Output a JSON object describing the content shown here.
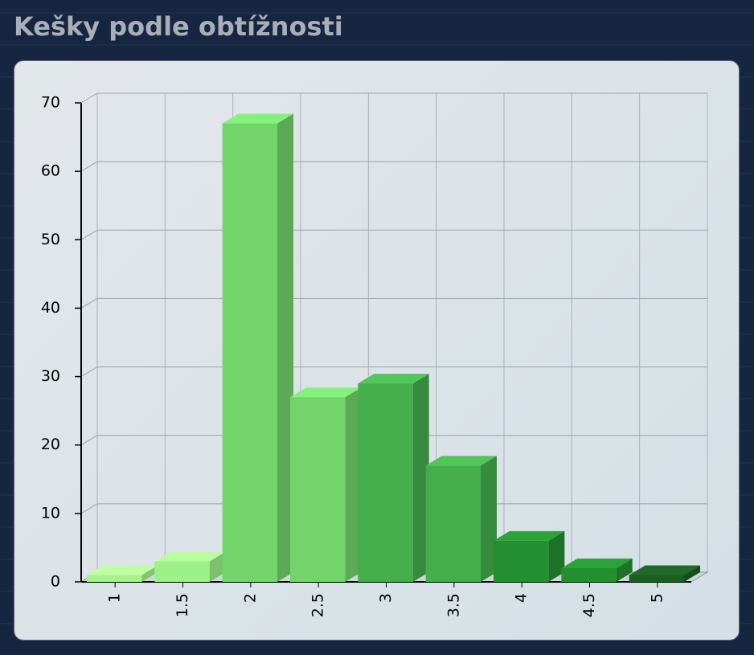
{
  "chart_data": {
    "type": "bar3d",
    "title": "Kešky podle obtížnosti",
    "categories": [
      "1",
      "1.5",
      "2",
      "2.5",
      "3",
      "3.5",
      "4",
      "4.5",
      "5"
    ],
    "values": [
      1,
      3,
      67,
      27,
      29,
      17,
      6,
      2,
      1
    ],
    "colors": [
      "#a6f28e",
      "#9ef088",
      "#72d46a",
      "#72d46a",
      "#44ae4c",
      "#44ae4c",
      "#248f30",
      "#248f30",
      "#1c5e22"
    ],
    "ylim": [
      0,
      70
    ],
    "yticks": [
      0,
      10,
      20,
      30,
      40,
      50,
      60,
      70
    ],
    "grid": true
  }
}
